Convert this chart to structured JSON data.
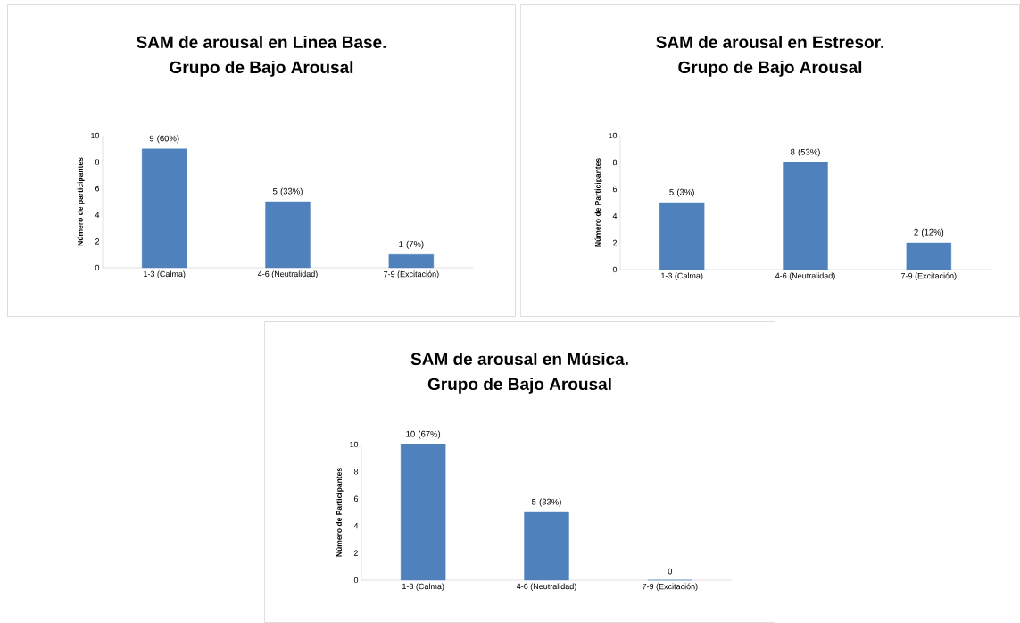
{
  "chart_data": [
    {
      "type": "bar",
      "title": "SAM de arousal en Linea Base.",
      "subtitle": "Grupo de Bajo Arousal",
      "ylabel": "Número de participantes",
      "categories": [
        "1-3 (Calma)",
        "4-6 (Neutralidad)",
        "7-9 (Excitación)"
      ],
      "values": [
        9,
        5,
        1
      ],
      "value_labels": [
        "9 (60%)",
        "5 (33%)",
        "1 (7%)"
      ],
      "color": "#4f81bd",
      "ylim": [
        0,
        10
      ],
      "yticks": [
        0,
        2,
        4,
        6,
        8,
        10
      ]
    },
    {
      "type": "bar",
      "title": "SAM de arousal en Estresor.",
      "subtitle": "Grupo de Bajo Arousal",
      "ylabel": "Número de Participantes",
      "categories": [
        "1-3 (Calma)",
        "4-6 (Neutralidad)",
        "7-9 (Excitación)"
      ],
      "values": [
        5,
        8,
        2
      ],
      "value_labels": [
        "5 (3%)",
        "8 (53%)",
        "2 (12%)"
      ],
      "color": "#4f81bd",
      "ylim": [
        0,
        10
      ],
      "yticks": [
        0,
        2,
        4,
        6,
        8,
        10
      ]
    },
    {
      "type": "bar",
      "title": "SAM de arousal en Música.",
      "subtitle": "Grupo de Bajo Arousal",
      "ylabel": "Número de Participantes",
      "categories": [
        "1-3 (Calma)",
        "4-6 (Neutralidad)",
        "7-9 (Excitación)"
      ],
      "values": [
        10,
        5,
        0
      ],
      "value_labels": [
        "10 (67%)",
        "5 (33%)",
        "0"
      ],
      "color": "#4f81bd",
      "ylim": [
        0,
        10
      ],
      "yticks": [
        0,
        2,
        4,
        6,
        8,
        10
      ]
    }
  ]
}
